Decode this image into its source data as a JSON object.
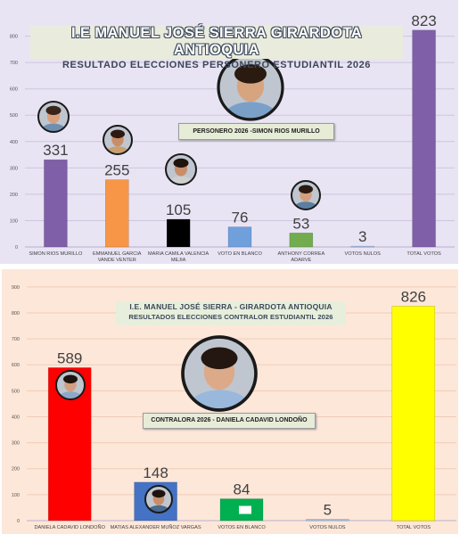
{
  "charts": [
    {
      "title": "I.E MANUEL JOSÉ SIERRA GIRARDOTA ANTIOQUIA",
      "subtitle": "RESULTADO ELECCIONES PERSONERO ESTUDIANTIL 2026",
      "winner_label": "PERSONERO 2026 -SIMON RIOS MURILLO",
      "colors": {
        "background": "#e9e4f4",
        "grid": "#cdc6dc"
      }
    },
    {
      "title": "I.E. MANUEL JOSÉ SIERRA - GIRARDOTA ANTIOQUIA",
      "subtitle": "RESULTADOS ELECCIONES CONTRALOR ESTUDIANTIL 2026",
      "winner_label": "CONTRALORA 2026 - DANIELA CADAVID LONDOÑO",
      "colors": {
        "background": "#fde7d9",
        "grid": "#f0cdb6"
      }
    }
  ],
  "chart_data": [
    {
      "type": "bar",
      "title": "I.E MANUEL JOSÉ SIERRA GIRARDOTA ANTIOQUIA",
      "subtitle": "RESULTADO ELECCIONES PERSONERO ESTUDIANTIL 2026",
      "categories": [
        [
          "SIMON RIOS MURILLO"
        ],
        [
          "EMMANUEL GARCIA",
          "VANDE VENTER"
        ],
        [
          "MARIA CAMILA VALENCIA",
          "MEJIA"
        ],
        [
          "VOTO EN BLANCO"
        ],
        [
          "ANTHONY CORREA",
          "ADARVE"
        ],
        [
          "VOTOS NULOS"
        ],
        [
          "TOTAL VOTOS"
        ]
      ],
      "values": [
        331,
        255,
        105,
        76,
        53,
        3,
        823
      ],
      "colors": [
        "#7f5fa8",
        "#f79646",
        "#000000",
        "#6fa0dc",
        "#72ac4e",
        "#a8c0e8",
        "#7f5fa8"
      ],
      "yticks": [
        0,
        100,
        200,
        300,
        400,
        500,
        600,
        700,
        800
      ],
      "ylim": [
        0,
        890
      ],
      "grid": true,
      "legend": "none"
    },
    {
      "type": "bar",
      "title": "I.E. MANUEL JOSÉ SIERRA - GIRARDOTA ANTIOQUIA",
      "subtitle": "RESULTADOS ELECCIONES CONTRALOR ESTUDIANTIL 2026",
      "categories": [
        [
          "DANIELA CADAVID LONDOÑO"
        ],
        [
          "MATIAS ALEXANDER MUÑOZ VARGAS"
        ],
        [
          "VOTOS EN BLANCO"
        ],
        [
          "VOTOS NULOS"
        ],
        [
          "TOTAL VOTOS"
        ]
      ],
      "values": [
        589,
        148,
        84,
        5,
        826
      ],
      "colors": [
        "#ff0000",
        "#4472c4",
        "#00b050",
        "#a8c0e8",
        "#ffff00"
      ],
      "yticks": [
        0,
        100,
        200,
        300,
        400,
        500,
        600,
        700,
        800,
        900
      ],
      "ylim": [
        0,
        920
      ],
      "grid": true,
      "legend": "none"
    }
  ]
}
